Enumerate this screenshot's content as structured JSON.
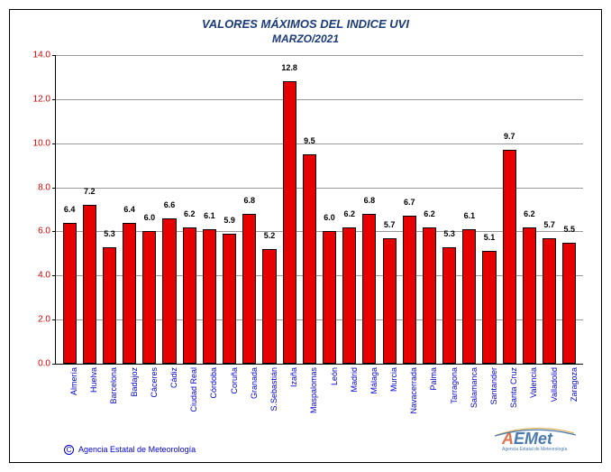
{
  "chart": {
    "type": "bar",
    "title": "VALORES MÁXIMOS DEL INDICE UVI",
    "subtitle": "MARZO/2021",
    "title_color": "#1a3a7a",
    "title_fontsize": 13,
    "subtitle_fontsize": 12,
    "background_color": "#ffffff",
    "border_color": "#000000",
    "ylim": [
      0,
      14
    ],
    "ytick_step": 2,
    "yticks": [
      "0.0",
      "2.0",
      "4.0",
      "6.0",
      "8.0",
      "10.0",
      "12.0",
      "14.0"
    ],
    "ytick_color": "#d00000",
    "grid_color": "#999999",
    "bar_color": "#e60000",
    "bar_border_color": "#000000",
    "bar_width": 0.68,
    "xlabel_color": "#0000cc",
    "xlabel_rotation": -90,
    "value_label_fontsize": 9,
    "categories": [
      "Almería",
      "Huelva",
      "Barcelona",
      "Badajoz",
      "Cáceres",
      "Cádiz",
      "Ciudad Real",
      "Córdoba",
      "Coruña",
      "Granada",
      "S.Sebastián",
      "Izaña",
      "Maspalomas",
      "León",
      "Madrid",
      "Málaga",
      "Murcia",
      "Navacerrada",
      "Palma",
      "Tarragona",
      "Salamanca",
      "Santander",
      "Santa Cruz",
      "Valencia",
      "Valladolid",
      "Zaragoza"
    ],
    "values": [
      6.4,
      7.2,
      5.3,
      6.4,
      6.0,
      6.6,
      6.2,
      6.1,
      5.9,
      6.8,
      5.2,
      12.8,
      9.5,
      6.0,
      6.2,
      6.8,
      5.7,
      6.7,
      6.2,
      5.3,
      6.1,
      5.1,
      9.7,
      6.2,
      5.7,
      5.5
    ]
  },
  "copyright": {
    "text": "Agencia Estatal de Meteorología",
    "color": "#0000cc"
  },
  "logo": {
    "text": "AEMet",
    "subtitle": "Agencia Estatal de Meteorología",
    "color_accent": "#e07050",
    "color_main": "#4a7ab0"
  }
}
